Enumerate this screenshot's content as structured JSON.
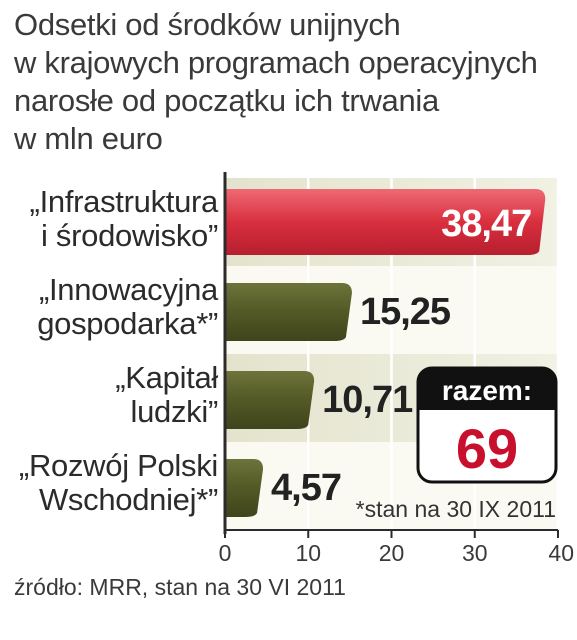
{
  "title_lines": [
    "Odsetki od środków unijnych",
    "w krajowych programach operacyjnych",
    "narosłe od początku ich trwania",
    "w mln euro"
  ],
  "source": "źródło: MRR, stan na 30 VI 2011",
  "colors": {
    "highlight_bar": "#d72b3b",
    "bar": "#4f5524",
    "band": "#e9e9d6",
    "axis": "#2b2b2b",
    "badge_top": "#111111",
    "badge_value": "#c8102e"
  },
  "chart_data": {
    "type": "bar",
    "orientation": "horizontal",
    "categories": [
      [
        "„Infrastruktura",
        "i środowisko”"
      ],
      [
        "„Innowacyjna",
        "gospodarka*”"
      ],
      [
        "„Kapitał",
        "ludzki”"
      ],
      [
        "„Rozwój Polski",
        "Wschodniej*”"
      ]
    ],
    "values": [
      38.47,
      15.25,
      10.71,
      4.57
    ],
    "value_labels": [
      "38,47",
      "15,25",
      "10,71",
      "4,57"
    ],
    "xlim": [
      0,
      40
    ],
    "xticks": [
      0,
      10,
      20,
      30,
      40
    ],
    "grid": true,
    "annotation": "*stan na 30 IX 2011",
    "total_box": {
      "label": "razem:",
      "value": "69"
    }
  }
}
